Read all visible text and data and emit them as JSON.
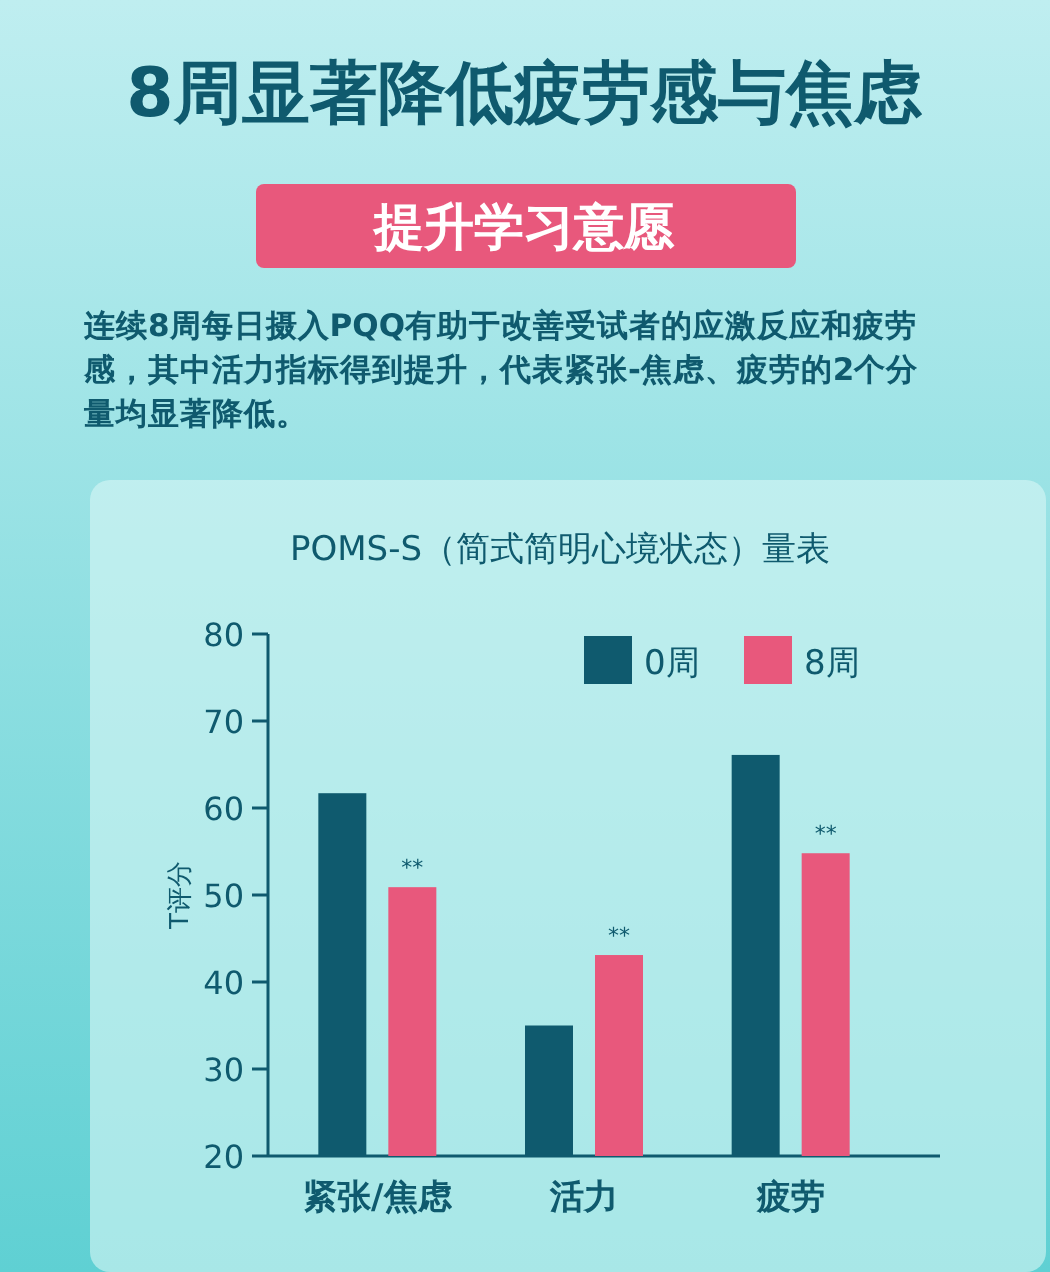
{
  "chart_data": {
    "type": "bar",
    "title": "8周显著降低疲劳感与焦虑",
    "subtitle": "提升学习意愿",
    "annotations": [
      "连续8周每日摄入PQQ有助于改善受试者的应激反应和疲劳感，其中活力指标得到提升，代表紧张-焦虑、疲劳的2个分量均显著降低。",
      "POMS-S（简式简明心境状态）量表",
      "**",
      "**",
      "**"
    ],
    "ylabel": "T评分",
    "categories": [
      "紧张/焦虑",
      "活力",
      "疲劳"
    ],
    "series": [
      {
        "name": "0周",
        "color": "#0f5a6e",
        "values": [
          61.7,
          35,
          66.1
        ]
      },
      {
        "name": "8周",
        "color": "#e8587c",
        "values": [
          50.9,
          43.1,
          54.8
        ]
      }
    ],
    "ylim": [
      20,
      80
    ],
    "yticks": [
      20,
      30,
      40,
      50,
      60,
      70,
      80
    ],
    "legend": "top right"
  }
}
